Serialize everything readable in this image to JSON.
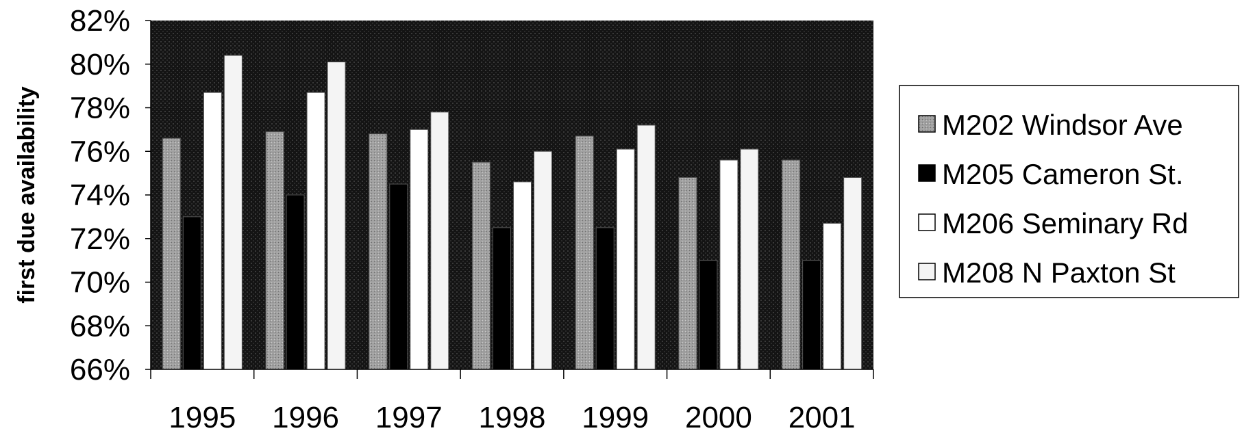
{
  "chart_data": {
    "type": "bar",
    "title": "",
    "xlabel": "",
    "ylabel": "first due availability",
    "ylim": [
      66,
      82
    ],
    "y_tick_step": 2,
    "y_tick_suffix": "%",
    "grid": false,
    "legend_position": "right",
    "categories": [
      "1995",
      "1996",
      "1997",
      "1998",
      "1999",
      "2000",
      "2001"
    ],
    "series": [
      {
        "name": "M202 Windsor Ave",
        "color": "#9a9a9a",
        "values": [
          76.6,
          76.9,
          76.8,
          75.5,
          76.7,
          74.8,
          75.6
        ]
      },
      {
        "name": "M205 Cameron St.",
        "color": "#000000",
        "values": [
          73.0,
          74.0,
          74.5,
          72.5,
          72.5,
          71.0,
          71.0
        ]
      },
      {
        "name": "M206 Seminary Rd",
        "color": "#ffffff",
        "values": [
          78.7,
          78.7,
          77.0,
          74.6,
          76.1,
          75.6,
          72.7
        ]
      },
      {
        "name": "M208 N Paxton St",
        "color": "#f4f4f4",
        "values": [
          80.4,
          80.1,
          77.8,
          76.0,
          77.2,
          76.1,
          74.8
        ]
      }
    ]
  }
}
